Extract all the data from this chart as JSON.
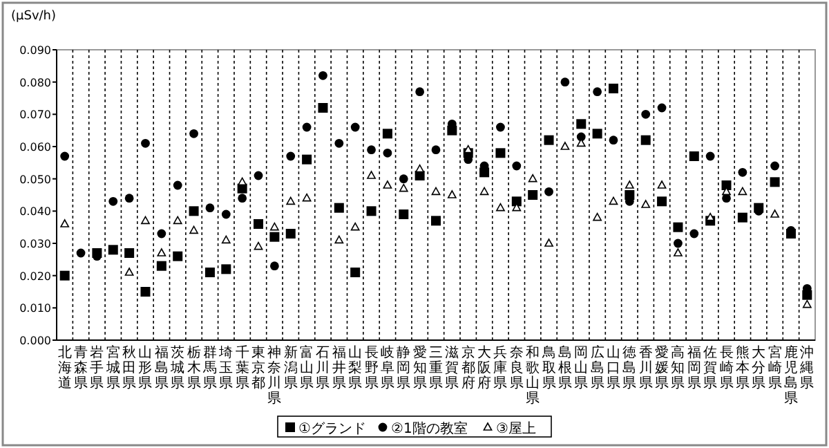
{
  "chart_data": {
    "type": "scatter",
    "ylabel": "(μSv/h)",
    "categories": [
      "北海道",
      "青森県",
      "岩手県",
      "宮城県",
      "秋田県",
      "山形県",
      "福島県",
      "茨城県",
      "栃木県",
      "群馬県",
      "埼玉県",
      "千葉県",
      "東京都",
      "神奈川県",
      "新潟県",
      "富山県",
      "石川県",
      "福井県",
      "山梨県",
      "長野県",
      "岐阜県",
      "静岡県",
      "愛知県",
      "三重県",
      "滋賀県",
      "京都府",
      "大阪府",
      "兵庫県",
      "奈良県",
      "和歌山県",
      "鳥取県",
      "島根県",
      "岡山県",
      "広島県",
      "山口県",
      "徳島県",
      "香川県",
      "愛媛県",
      "高知県",
      "福岡県",
      "佐賀県",
      "長崎県",
      "熊本県",
      "大分県",
      "宮崎県",
      "鹿児島県",
      "沖縄県"
    ],
    "series": [
      {
        "name": "①グランド",
        "color": "#000000",
        "marker": "square",
        "values": [
          0.02,
          null,
          0.027,
          0.028,
          0.027,
          0.015,
          0.023,
          0.026,
          0.04,
          0.021,
          0.022,
          0.047,
          0.036,
          0.032,
          0.033,
          0.056,
          0.072,
          0.041,
          0.021,
          0.04,
          0.064,
          0.039,
          0.051,
          0.037,
          0.065,
          0.058,
          0.052,
          0.058,
          0.043,
          0.045,
          0.062,
          null,
          0.067,
          0.064,
          0.078,
          0.045,
          0.062,
          0.043,
          0.035,
          0.057,
          0.037,
          0.048,
          0.038,
          0.041,
          0.049,
          0.033,
          0.014
        ]
      },
      {
        "name": "②1階の教室",
        "color": "#000000",
        "marker": "circle",
        "values": [
          0.057,
          0.027,
          0.026,
          0.043,
          0.044,
          0.061,
          0.033,
          0.048,
          0.064,
          0.041,
          0.039,
          0.044,
          0.051,
          0.023,
          0.057,
          0.066,
          0.082,
          0.061,
          0.066,
          0.059,
          0.058,
          0.05,
          0.077,
          0.059,
          0.067,
          0.056,
          0.054,
          0.066,
          0.054,
          null,
          0.046,
          0.08,
          0.063,
          0.077,
          0.062,
          0.043,
          0.07,
          0.072,
          0.03,
          0.033,
          0.057,
          0.044,
          0.052,
          0.04,
          0.054,
          0.034,
          0.016
        ]
      },
      {
        "name": "③屋上",
        "color": "#000000",
        "marker": "triangle",
        "values": [
          0.036,
          null,
          null,
          null,
          0.021,
          0.037,
          0.027,
          0.037,
          0.034,
          null,
          0.031,
          0.049,
          0.029,
          0.035,
          0.043,
          0.044,
          null,
          0.031,
          0.035,
          0.051,
          0.048,
          0.047,
          0.053,
          0.046,
          0.045,
          0.059,
          0.046,
          0.041,
          0.041,
          0.05,
          0.03,
          0.06,
          0.061,
          0.038,
          0.043,
          0.048,
          0.042,
          0.048,
          0.027,
          null,
          0.038,
          0.046,
          0.046,
          null,
          0.039,
          null,
          0.011
        ]
      }
    ],
    "ylim": [
      0,
      0.09
    ],
    "yticks": [
      {
        "value": 0,
        "label": "0.000"
      },
      {
        "value": 0.01,
        "label": "0.010"
      },
      {
        "value": 0.02,
        "label": "0.020"
      },
      {
        "value": 0.03,
        "label": "0.030"
      },
      {
        "value": 0.04,
        "label": "0.040"
      },
      {
        "value": 0.05,
        "label": "0.050"
      },
      {
        "value": 0.06,
        "label": "0.060"
      },
      {
        "value": 0.07,
        "label": "0.070"
      },
      {
        "value": 0.08,
        "label": "0.080"
      },
      {
        "value": 0.09,
        "label": "0.090"
      }
    ],
    "grid": "x",
    "line_style": "dashed",
    "legend": "bottom"
  }
}
